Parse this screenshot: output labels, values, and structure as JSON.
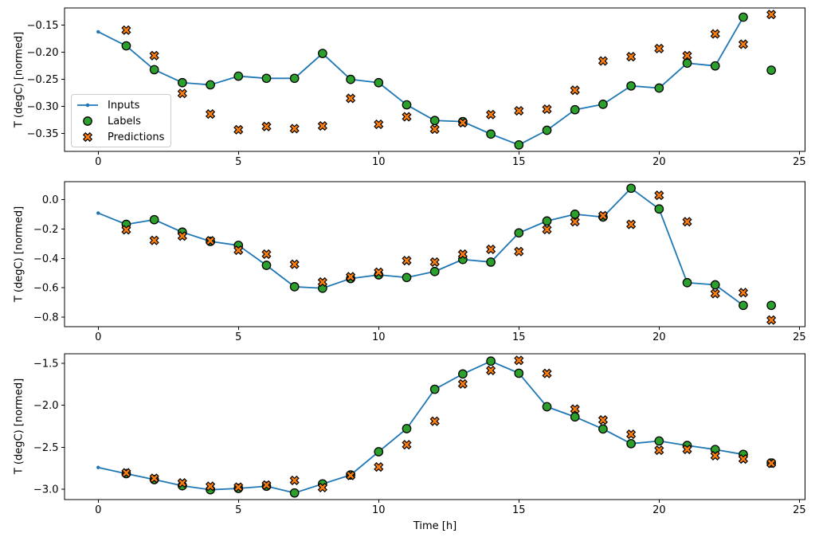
{
  "figure": {
    "background": "#ffffff",
    "xlabel": "Time [h]",
    "legend": {
      "items": [
        {
          "label": "Inputs",
          "marker": "line-dot-icon",
          "color": "#1f77b4"
        },
        {
          "label": "Labels",
          "marker": "circle-icon",
          "color": "#2ca02c"
        },
        {
          "label": "Predictions",
          "marker": "x-icon",
          "color": "#ff7f0e"
        }
      ]
    }
  },
  "chart_data": [
    {
      "type": "line",
      "title": "",
      "xlabel": "",
      "ylabel": "T (degC) [normed]",
      "grid": false,
      "legend_position": "center left",
      "xlim": [
        -1.2,
        25.2
      ],
      "ylim": [
        -0.383,
        -0.118
      ],
      "xticks": [
        0,
        5,
        10,
        15,
        20,
        25
      ],
      "xtick_labels": [
        "0",
        "5",
        "10",
        "15",
        "20",
        "25"
      ],
      "ytick_values": [
        -0.15,
        -0.2,
        -0.25,
        -0.3,
        -0.35
      ],
      "ytick_labels": [
        "−0.15",
        "−0.20",
        "−0.25",
        "−0.30",
        "−0.35"
      ],
      "series": [
        {
          "name": "Inputs",
          "style": "line-dot",
          "color": "#1f77b4",
          "x": [
            0,
            1,
            2,
            3,
            4,
            5,
            6,
            7,
            8,
            9,
            10,
            11,
            12,
            13,
            14,
            15,
            16,
            17,
            18,
            19,
            20,
            21,
            22,
            23
          ],
          "y": [
            -0.162,
            -0.188,
            -0.232,
            -0.256,
            -0.26,
            -0.244,
            -0.248,
            -0.248,
            -0.202,
            -0.25,
            -0.256,
            -0.297,
            -0.326,
            -0.328,
            -0.351,
            -0.371,
            -0.344,
            -0.306,
            -0.296,
            -0.262,
            -0.266,
            -0.22,
            -0.225,
            -0.135
          ]
        },
        {
          "name": "Labels",
          "style": "circle",
          "color": "#2ca02c",
          "edge": "#000000",
          "x": [
            1,
            2,
            3,
            4,
            5,
            6,
            7,
            8,
            9,
            10,
            11,
            12,
            13,
            14,
            15,
            16,
            17,
            18,
            19,
            20,
            21,
            22,
            23,
            24
          ],
          "y": [
            -0.188,
            -0.232,
            -0.256,
            -0.26,
            -0.244,
            -0.248,
            -0.248,
            -0.202,
            -0.25,
            -0.256,
            -0.297,
            -0.326,
            -0.328,
            -0.351,
            -0.371,
            -0.344,
            -0.306,
            -0.296,
            -0.262,
            -0.266,
            -0.22,
            -0.225,
            -0.135,
            -0.233
          ]
        },
        {
          "name": "Predictions",
          "style": "X",
          "color": "#ff7f0e",
          "edge": "#000000",
          "x": [
            1,
            2,
            3,
            4,
            5,
            6,
            7,
            8,
            9,
            10,
            11,
            12,
            13,
            14,
            15,
            16,
            17,
            18,
            19,
            20,
            21,
            22,
            23,
            24
          ],
          "y": [
            -0.159,
            -0.206,
            -0.276,
            -0.314,
            -0.343,
            -0.337,
            -0.341,
            -0.336,
            -0.285,
            -0.333,
            -0.319,
            -0.342,
            -0.33,
            -0.315,
            -0.308,
            -0.305,
            -0.27,
            -0.216,
            -0.208,
            -0.193,
            -0.206,
            -0.166,
            -0.185,
            -0.13
          ]
        }
      ]
    },
    {
      "type": "line",
      "title": "",
      "xlabel": "",
      "ylabel": "T (degC) [normed]",
      "grid": false,
      "xlim": [
        -1.2,
        25.2
      ],
      "ylim": [
        -0.865,
        0.123
      ],
      "xticks": [
        0,
        5,
        10,
        15,
        20,
        25
      ],
      "xtick_labels": [
        "0",
        "5",
        "10",
        "15",
        "20",
        "25"
      ],
      "ytick_values": [
        0.0,
        -0.2,
        -0.4,
        -0.6,
        -0.8
      ],
      "ytick_labels": [
        "0.0",
        "−0.2",
        "−0.4",
        "−0.6",
        "−0.8"
      ],
      "series": [
        {
          "name": "Inputs",
          "style": "line-dot",
          "color": "#1f77b4",
          "x": [
            0,
            1,
            2,
            3,
            4,
            5,
            6,
            7,
            8,
            9,
            10,
            11,
            12,
            13,
            14,
            15,
            16,
            17,
            18,
            19,
            20,
            21,
            22,
            23
          ],
          "y": [
            -0.091,
            -0.168,
            -0.136,
            -0.221,
            -0.284,
            -0.311,
            -0.447,
            -0.593,
            -0.603,
            -0.537,
            -0.512,
            -0.53,
            -0.489,
            -0.407,
            -0.425,
            -0.226,
            -0.145,
            -0.099,
            -0.118,
            0.078,
            -0.063,
            -0.565,
            -0.58,
            -0.72
          ]
        },
        {
          "name": "Labels",
          "style": "circle",
          "color": "#2ca02c",
          "edge": "#000000",
          "x": [
            1,
            2,
            3,
            4,
            5,
            6,
            7,
            8,
            9,
            10,
            11,
            12,
            13,
            14,
            15,
            16,
            17,
            18,
            19,
            20,
            21,
            22,
            23,
            24
          ],
          "y": [
            -0.168,
            -0.136,
            -0.221,
            -0.284,
            -0.311,
            -0.447,
            -0.593,
            -0.603,
            -0.537,
            -0.512,
            -0.53,
            -0.489,
            -0.407,
            -0.425,
            -0.226,
            -0.145,
            -0.099,
            -0.118,
            0.078,
            -0.063,
            -0.565,
            -0.58,
            -0.72,
            -0.72
          ]
        },
        {
          "name": "Predictions",
          "style": "X",
          "color": "#ff7f0e",
          "edge": "#000000",
          "x": [
            1,
            2,
            3,
            4,
            5,
            6,
            7,
            8,
            9,
            10,
            11,
            12,
            13,
            14,
            15,
            16,
            17,
            18,
            19,
            20,
            21,
            22,
            23,
            24
          ],
          "y": [
            -0.205,
            -0.277,
            -0.248,
            -0.28,
            -0.344,
            -0.371,
            -0.44,
            -0.561,
            -0.525,
            -0.494,
            -0.415,
            -0.425,
            -0.371,
            -0.338,
            -0.353,
            -0.203,
            -0.15,
            -0.109,
            -0.168,
            0.03,
            -0.15,
            -0.64,
            -0.633,
            -0.82
          ]
        }
      ]
    },
    {
      "type": "line",
      "title": "",
      "xlabel": "Time [h]",
      "ylabel": "T (degC) [normed]",
      "grid": false,
      "xlim": [
        -1.2,
        25.2
      ],
      "ylim": [
        -3.123,
        -1.386
      ],
      "xticks": [
        0,
        5,
        10,
        15,
        20,
        25
      ],
      "xtick_labels": [
        "0",
        "5",
        "10",
        "15",
        "20",
        "25"
      ],
      "ytick_values": [
        -1.5,
        -2.0,
        -2.5,
        -3.0
      ],
      "ytick_labels": [
        "−1.5",
        "−2.0",
        "−2.5",
        "−3.0"
      ],
      "series": [
        {
          "name": "Inputs",
          "style": "line-dot",
          "color": "#1f77b4",
          "x": [
            0,
            1,
            2,
            3,
            4,
            5,
            6,
            7,
            8,
            9,
            10,
            11,
            12,
            13,
            14,
            15,
            16,
            17,
            18,
            19,
            20,
            21,
            22,
            23
          ],
          "y": [
            -2.741,
            -2.814,
            -2.885,
            -2.958,
            -3.006,
            -2.99,
            -2.964,
            -3.044,
            -2.936,
            -2.83,
            -2.553,
            -2.278,
            -1.809,
            -1.627,
            -1.474,
            -1.618,
            -2.017,
            -2.138,
            -2.282,
            -2.457,
            -2.425,
            -2.479,
            -2.527,
            -2.585
          ]
        },
        {
          "name": "Labels",
          "style": "circle",
          "color": "#2ca02c",
          "edge": "#000000",
          "x": [
            1,
            2,
            3,
            4,
            5,
            6,
            7,
            8,
            9,
            10,
            11,
            12,
            13,
            14,
            15,
            16,
            17,
            18,
            19,
            20,
            21,
            22,
            23,
            24
          ],
          "y": [
            -2.814,
            -2.885,
            -2.958,
            -3.006,
            -2.99,
            -2.964,
            -3.044,
            -2.936,
            -2.83,
            -2.553,
            -2.278,
            -1.809,
            -1.627,
            -1.474,
            -1.618,
            -2.017,
            -2.138,
            -2.282,
            -2.457,
            -2.425,
            -2.479,
            -2.527,
            -2.585,
            -2.687
          ]
        },
        {
          "name": "Predictions",
          "style": "X",
          "color": "#ff7f0e",
          "edge": "#000000",
          "x": [
            1,
            2,
            3,
            4,
            5,
            6,
            7,
            8,
            9,
            10,
            11,
            12,
            13,
            14,
            15,
            16,
            17,
            18,
            19,
            20,
            21,
            22,
            23,
            24
          ],
          "y": [
            -2.805,
            -2.87,
            -2.925,
            -2.965,
            -2.975,
            -2.95,
            -2.895,
            -2.98,
            -2.835,
            -2.735,
            -2.47,
            -2.19,
            -1.745,
            -1.585,
            -1.465,
            -1.62,
            -2.045,
            -2.175,
            -2.345,
            -2.535,
            -2.525,
            -2.6,
            -2.64,
            -2.69
          ]
        }
      ]
    }
  ]
}
